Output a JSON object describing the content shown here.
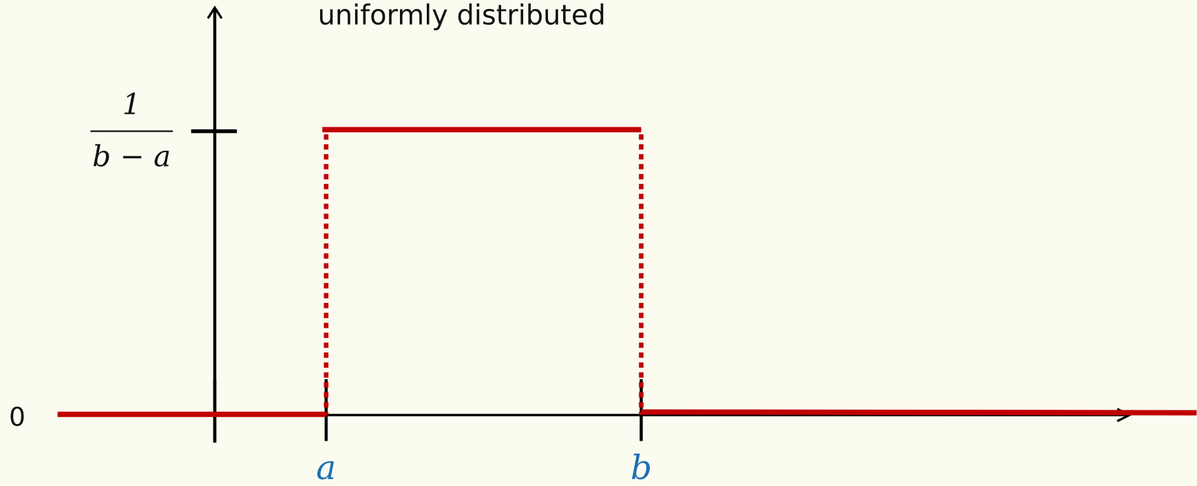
{
  "title": "uniformly distributed",
  "y_labels": {
    "numerator": "1",
    "denominator": "b − a",
    "zero": "0"
  },
  "x_labels": [
    "a",
    "b"
  ]
}
